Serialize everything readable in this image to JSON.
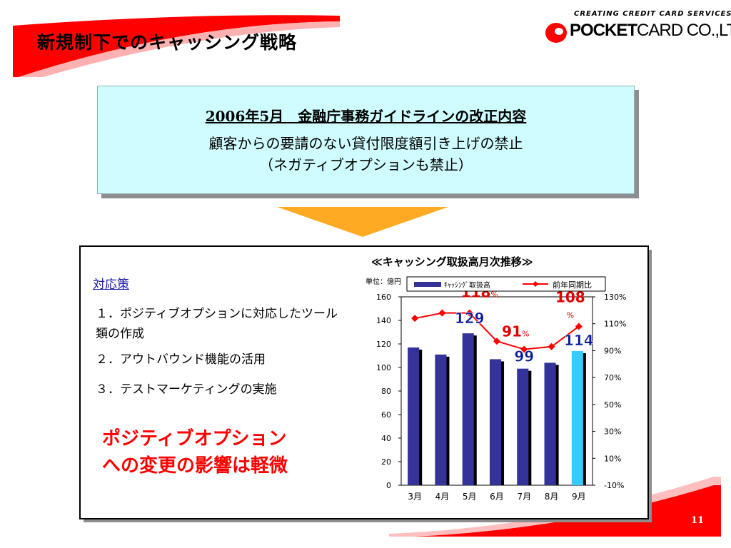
{
  "header": {
    "title": "新規制下でのキャッシング戦略",
    "logo": {
      "tagline": "CREATING CREDIT CARD SERVICES",
      "brand_bold": "POCKET",
      "brand_rest": "CARD CO.,LTD."
    }
  },
  "guideline": {
    "title_prefix": "2006年5月",
    "title_rest": "金融庁事務ガイドラインの改正内容",
    "line1": "顧客からの要請のない貸付限度額引き上げの禁止",
    "line2": "（ネガティブオプションも禁止）"
  },
  "measures": {
    "heading": "対応策",
    "items": [
      "１．ポジティブオプションに対応したツール類の作成",
      "２．アウトバウンド機能の活用",
      "３．テストマーケティングの実施"
    ],
    "conclusion_line1": "ポジティブオプション",
    "conclusion_line2": "への変更の影響は軽微"
  },
  "chart_data": {
    "type": "bar",
    "title": "≪キャッシング取扱高月次推移≫",
    "unit_label": "単位：億円",
    "categories": [
      "3月",
      "4月",
      "5月",
      "6月",
      "7月",
      "8月",
      "9月"
    ],
    "series": [
      {
        "name": "ｷｬｯｼﾝｸﾞ取扱高",
        "kind": "bar",
        "axis": "left",
        "values": [
          117,
          111,
          129,
          107,
          99,
          104,
          114
        ],
        "color": "#333399",
        "highlight_color": "#33ccff",
        "highlight_index": 6
      },
      {
        "name": "前年同期比",
        "kind": "line",
        "axis": "right",
        "values": [
          114,
          118,
          118,
          97,
          91,
          93,
          108
        ],
        "color": "#ff0000"
      }
    ],
    "y_left": {
      "min": 0,
      "max": 160,
      "ticks": [
        "0",
        "20",
        "40",
        "60",
        "80",
        "100",
        "120",
        "140",
        "160"
      ]
    },
    "y_right": {
      "min": -10,
      "max": 130,
      "ticks": [
        "-10%",
        "10%",
        "30%",
        "50%",
        "70%",
        "90%",
        "110%",
        "130%"
      ]
    },
    "value_labels": {
      "bars": [
        {
          "index": 2,
          "text": "129"
        },
        {
          "index": 4,
          "text": "99"
        },
        {
          "index": 6,
          "text": "114"
        }
      ],
      "line": [
        {
          "index": 2,
          "number": "118",
          "unit": "%"
        },
        {
          "index": 4,
          "number": "91",
          "unit": "%"
        },
        {
          "index": 6,
          "number": "108",
          "unit": "%"
        }
      ]
    }
  },
  "footer": {
    "page_number": "11"
  },
  "colors": {
    "accent_red": "#ff0000",
    "guide_bg": "#cffcfe",
    "arrow": "#ffaa22"
  }
}
